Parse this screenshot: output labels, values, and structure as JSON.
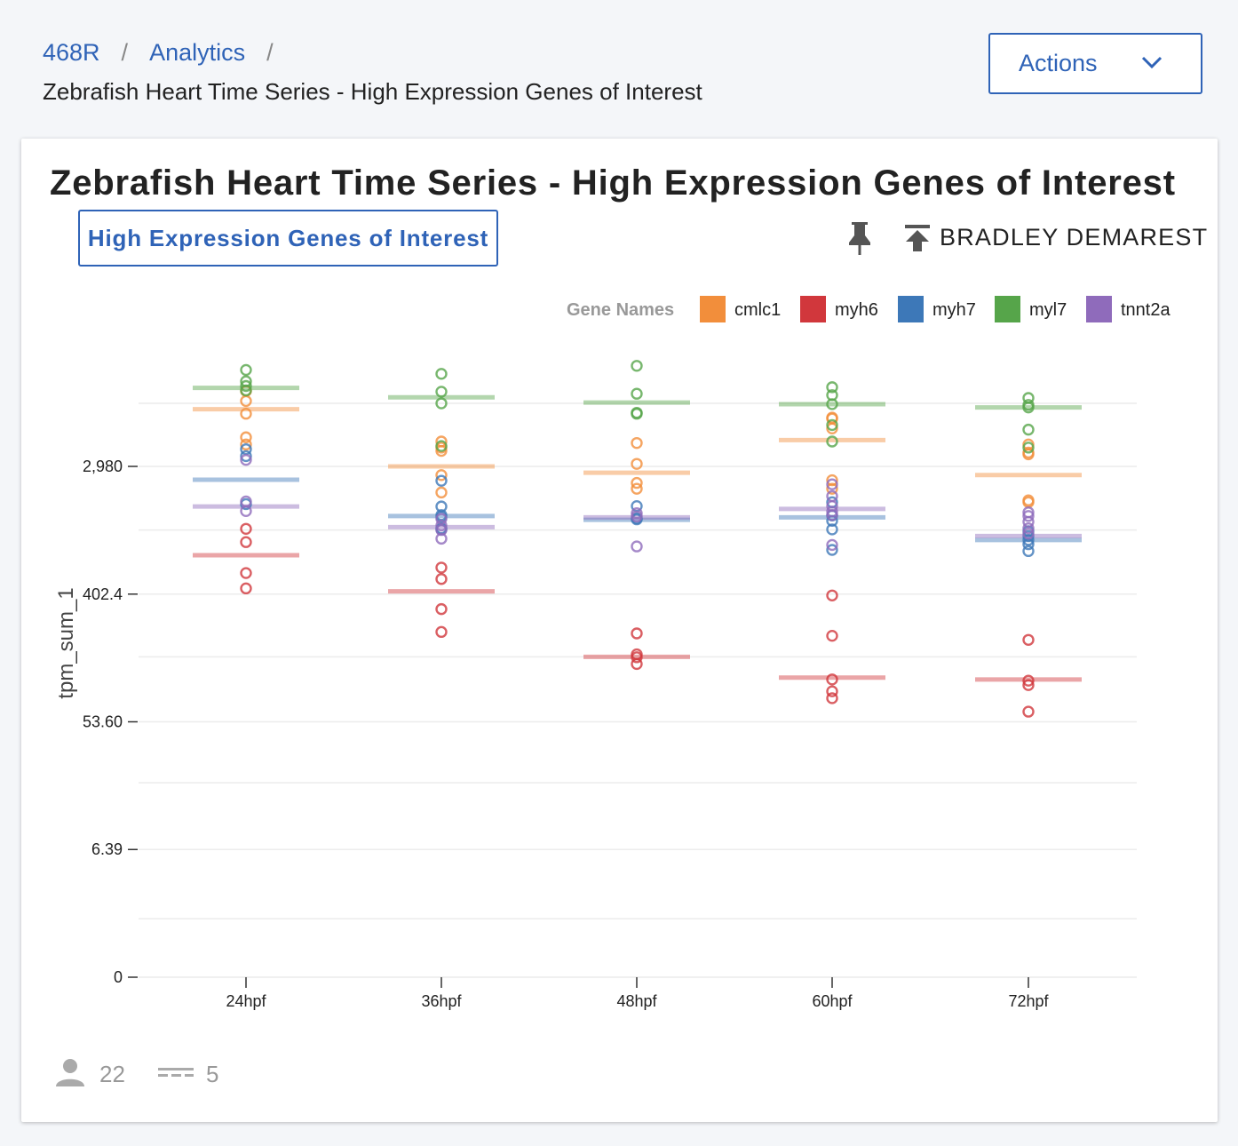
{
  "breadcrumb": {
    "root": "468R",
    "section": "Analytics",
    "separator": "/"
  },
  "page_subtitle": "Zebrafish Heart Time Series - High Expression Genes of Interest",
  "actions": {
    "label": "Actions"
  },
  "card": {
    "title": "Zebrafish Heart Time Series - High Expression Genes of Interest",
    "tag_label": "High Expression Genes of Interest",
    "author": "BRADLEY DEMAREST",
    "footer": {
      "user_count": "22",
      "series_count": "5"
    }
  },
  "colors": {
    "accent": "#2f63b7",
    "cmlc1": "#f28e3b",
    "myh6": "#d1373c",
    "myh7": "#3d78b8",
    "myl7": "#56a54a",
    "tnnt2a": "#8f6bbb"
  },
  "chart_data": {
    "type": "scatter",
    "ylabel": "tpm_sum_1",
    "xlabel": "",
    "y_scale": "symlog",
    "y_ticks": [
      0,
      6.39,
      53.6,
      402.4,
      2980
    ],
    "y_tick_labels": [
      "0",
      "6.39",
      "53.60",
      "402.4",
      "2,980"
    ],
    "ylim": [
      0,
      16000
    ],
    "grid": true,
    "legend": {
      "title": "Gene Names",
      "placement": "top-right"
    },
    "categories": [
      "24hpf",
      "36hpf",
      "48hpf",
      "60hpf",
      "72hpf"
    ],
    "series": [
      {
        "name": "cmlc1",
        "color": "#f28e3b",
        "points": [
          [
            "24hpf",
            [
              9700,
              8300,
              6800,
              4700,
              4200
            ]
          ],
          [
            "36hpf",
            [
              4400,
              4000,
              3800,
              2600,
              1980
            ]
          ],
          [
            "48hpf",
            [
              4300,
              3100,
              2300,
              2100
            ]
          ],
          [
            "60hpf",
            [
              6400,
              6300,
              5400,
              2400,
              2100
            ]
          ],
          [
            "72hpf",
            [
              4200,
              3700,
              3600,
              1750,
              1700
            ]
          ]
        ],
        "mean": [
          7300,
          2980,
          2700,
          4500,
          2600
        ]
      },
      {
        "name": "myh6",
        "color": "#d1373c",
        "points": [
          [
            "24hpf",
            [
              1120,
              910,
              560,
              440
            ]
          ],
          [
            "36hpf",
            [
              610,
              510,
              318,
              222
            ]
          ],
          [
            "48hpf",
            [
              217,
              156,
              149,
              134
            ]
          ],
          [
            "60hpf",
            [
              394,
              209,
              105,
              87,
              78
            ]
          ],
          [
            "72hpf",
            [
              196,
              103,
              96,
              63
            ]
          ]
        ],
        "mean": [
          740,
          420,
          150,
          108,
          105
        ]
      },
      {
        "name": "myh7",
        "color": "#3d78b8",
        "points": [
          [
            "24hpf",
            [
              3900,
              3500,
              1650
            ]
          ],
          [
            "36hpf",
            [
              2380,
              1590,
              1390,
              1350,
              1130,
              1110
            ]
          ],
          [
            "48hpf",
            [
              1600,
              1320,
              1300
            ]
          ],
          [
            "60hpf",
            [
              1700,
              1380,
              1270,
              1110,
              805
            ]
          ],
          [
            "72hpf",
            [
              1080,
              1000,
              940,
              880,
              790
            ]
          ]
        ],
        "mean": [
          2420,
          1370,
          1290,
          1340,
          940
        ]
      },
      {
        "name": "myl7",
        "color": "#56a54a",
        "points": [
          [
            "24hpf",
            [
              13500,
              11300,
              10500,
              9800
            ]
          ],
          [
            "36hpf",
            [
              12700,
              9600,
              8000,
              4100
            ]
          ],
          [
            "48hpf",
            [
              14400,
              9300,
              6900,
              6800
            ]
          ],
          [
            "60hpf",
            [
              10300,
              9100,
              7900,
              5700,
              4400
            ]
          ],
          [
            "72hpf",
            [
              8700,
              7800,
              7500,
              5300,
              4000
            ]
          ]
        ],
        "mean": [
          10200,
          8800,
          8100,
          7900,
          7500
        ]
      },
      {
        "name": "tnnt2a",
        "color": "#8f6bbb",
        "points": [
          [
            "24hpf",
            [
              1720,
              1480,
              3300
            ]
          ],
          [
            "36hpf",
            [
              1310,
              1180,
              1100,
              960
            ]
          ],
          [
            "48hpf",
            [
              1430,
              1360,
              850
            ]
          ],
          [
            "60hpf",
            [
              2250,
              1870,
              1600,
              1470,
              1390,
              870
            ]
          ],
          [
            "72hpf",
            [
              1450,
              1370,
              1250,
              1130,
              1040
            ]
          ]
        ],
        "mean": [
          1590,
          1150,
          1340,
          1530,
          1000
        ]
      }
    ]
  }
}
